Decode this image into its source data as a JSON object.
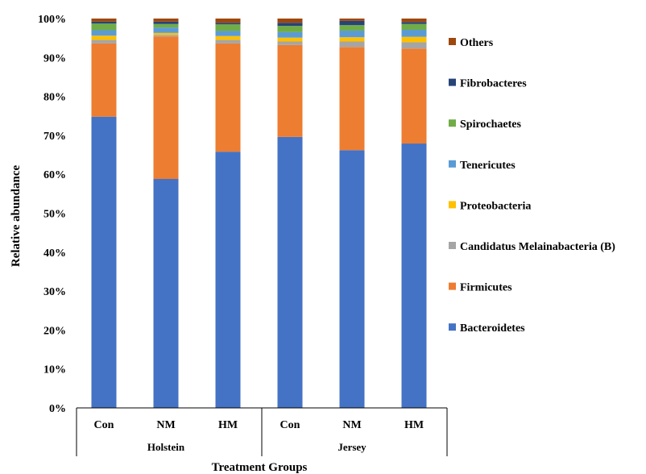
{
  "chart_data": {
    "type": "bar",
    "stacked": true,
    "ylabel": "Relative abundance",
    "xlabel": "Treatment Groups",
    "ylim": [
      0,
      100
    ],
    "yticks": [
      "0%",
      "10%",
      "20%",
      "30%",
      "40%",
      "50%",
      "60%",
      "70%",
      "80%",
      "90%",
      "100%"
    ],
    "grid": false,
    "legend_position": "right",
    "categories": [
      "Con",
      "NM",
      "HM",
      "Con",
      "NM",
      "HM"
    ],
    "groups": [
      {
        "label": "Holstein",
        "categories": [
          "Con",
          "NM",
          "HM"
        ]
      },
      {
        "label": "Jersey",
        "categories": [
          "Con",
          "NM",
          "HM"
        ]
      }
    ],
    "series": [
      {
        "name": "Bacteroidetes",
        "color": "#4472C4",
        "values": [
          74.8,
          58.8,
          65.8,
          69.6,
          66.2,
          67.9
        ]
      },
      {
        "name": "Firmicutes",
        "color": "#ED7D31",
        "values": [
          18.8,
          36.6,
          27.8,
          23.6,
          26.5,
          24.4
        ]
      },
      {
        "name": "Candidatus Melainabacteria (B)",
        "color": "#A5A5A5",
        "values": [
          0.9,
          0.4,
          0.9,
          0.9,
          1.4,
          1.6
        ]
      },
      {
        "name": "Proteobacteria",
        "color": "#FFC000",
        "values": [
          1.1,
          0.5,
          1.0,
          1.0,
          1.1,
          1.4
        ]
      },
      {
        "name": "Tenericutes",
        "color": "#5B9BD5",
        "values": [
          1.4,
          1.4,
          1.3,
          1.4,
          1.7,
          1.8
        ]
      },
      {
        "name": "Spirochaetes",
        "color": "#70AD47",
        "values": [
          1.7,
          0.9,
          1.7,
          1.6,
          1.4,
          1.5
        ]
      },
      {
        "name": "Fibrobacteres",
        "color": "#264478",
        "values": [
          0.5,
          0.6,
          0.4,
          0.8,
          1.1,
          0.5
        ]
      },
      {
        "name": "Others",
        "color": "#9E480E",
        "values": [
          0.8,
          0.8,
          1.1,
          1.1,
          0.6,
          0.9
        ]
      }
    ]
  }
}
